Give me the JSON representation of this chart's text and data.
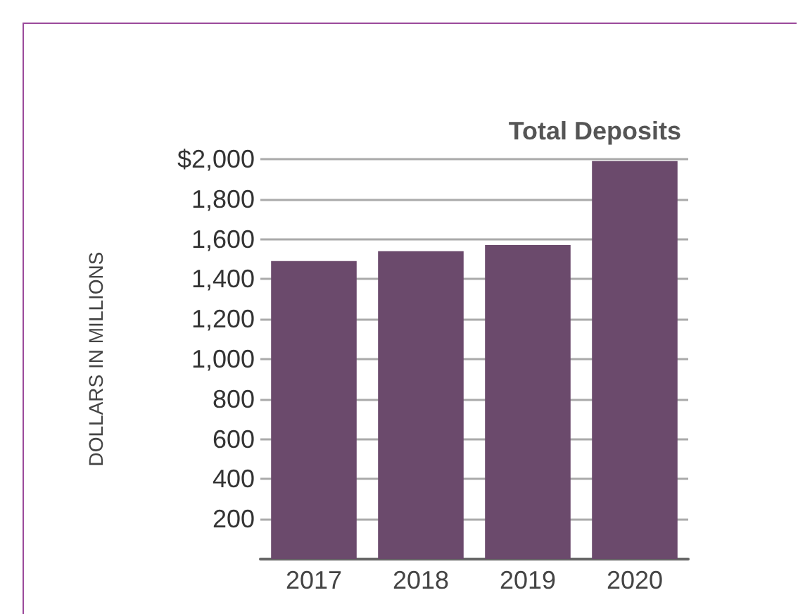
{
  "chart_data": {
    "type": "bar",
    "title": "Total Deposits",
    "ylabel": "DOLLARS IN MILLIONS",
    "categories": [
      "2017",
      "2018",
      "2019",
      "2020"
    ],
    "values": [
      1490,
      1540,
      1570,
      1990
    ],
    "color": "#6b4a6c",
    "ylim": [
      0,
      2000
    ],
    "yticks": [
      {
        "value": 200,
        "label": "200"
      },
      {
        "value": 400,
        "label": "400"
      },
      {
        "value": 600,
        "label": "600"
      },
      {
        "value": 800,
        "label": "800"
      },
      {
        "value": 1000,
        "label": "1,000"
      },
      {
        "value": 1200,
        "label": "1,200"
      },
      {
        "value": 1400,
        "label": "1,400"
      },
      {
        "value": 1600,
        "label": "1,600"
      },
      {
        "value": 1800,
        "label": "1,800"
      },
      {
        "value": 2000,
        "label": "$2,000"
      }
    ],
    "grid": "y"
  }
}
